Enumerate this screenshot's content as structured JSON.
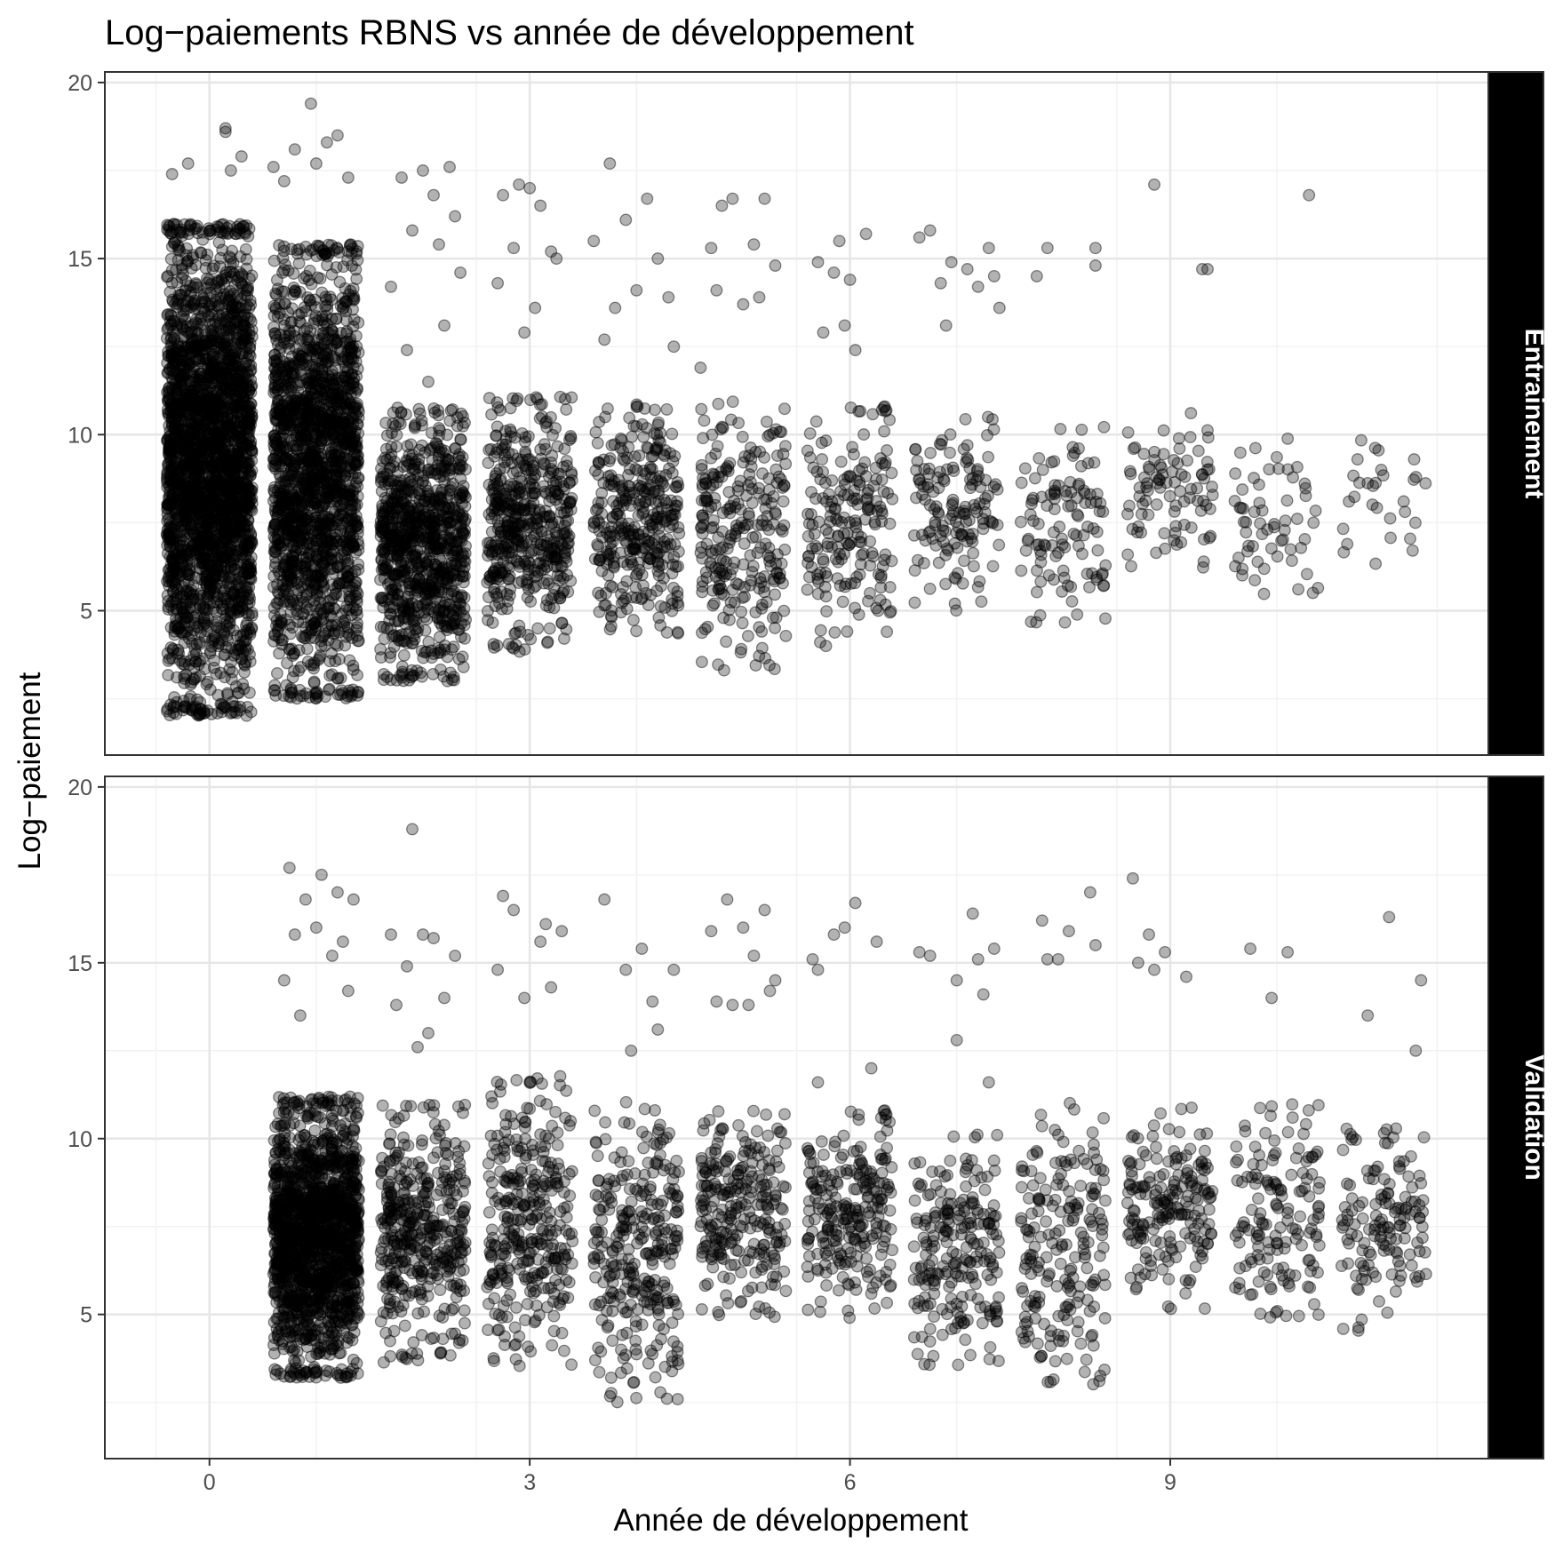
{
  "chart_data": {
    "type": "scatter",
    "title": "Log−paiements RBNS vs année de développement",
    "xlabel": "Année de développement",
    "ylabel": "Log−paiement",
    "xlim": [
      -0.98,
      11.98
    ],
    "ylim": [
      0.9,
      20.3
    ],
    "x_ticks": [
      0,
      3,
      6,
      9
    ],
    "x_tick_labels": [
      "0",
      "3",
      "6",
      "9"
    ],
    "y_ticks": [
      5,
      10,
      15,
      20
    ],
    "y_tick_labels": [
      "5",
      "10",
      "15",
      "20"
    ],
    "grid": true,
    "jitter_width": 0.4,
    "point_style": {
      "color": "#000000",
      "fill_opacity": 0.3
    },
    "panels": [
      {
        "name": "Entrainement",
        "groups": [
          {
            "x": 0,
            "n": 2600,
            "core": [
              2.0,
              16.0
            ],
            "outliers": [
              [
                0.15,
                18.6
              ],
              [
                0.15,
                18.7
              ],
              [
                -0.2,
                17.7
              ],
              [
                0.3,
                17.9
              ],
              [
                -0.35,
                17.4
              ],
              [
                0.2,
                17.5
              ]
            ]
          },
          {
            "x": 1,
            "n": 1800,
            "core": [
              2.5,
              15.4
            ],
            "outliers": [
              [
                0.95,
                19.4
              ],
              [
                1.2,
                18.5
              ],
              [
                0.8,
                18.1
              ],
              [
                1.1,
                18.3
              ],
              [
                0.6,
                17.6
              ],
              [
                1.0,
                17.7
              ],
              [
                1.3,
                17.3
              ],
              [
                0.7,
                17.2
              ]
            ]
          },
          {
            "x": 2,
            "n": 900,
            "core": [
              3.0,
              10.8
            ],
            "outliers": [
              [
                2.0,
                17.5
              ],
              [
                2.25,
                17.6
              ],
              [
                1.8,
                17.3
              ],
              [
                2.1,
                16.8
              ],
              [
                2.3,
                16.2
              ],
              [
                1.9,
                15.8
              ],
              [
                2.15,
                15.4
              ],
              [
                2.35,
                14.6
              ],
              [
                1.7,
                14.2
              ],
              [
                2.2,
                13.1
              ],
              [
                1.85,
                12.4
              ],
              [
                2.05,
                11.5
              ]
            ]
          },
          {
            "x": 3,
            "n": 500,
            "core": [
              3.8,
              11.1
            ],
            "outliers": [
              [
                2.9,
                17.1
              ],
              [
                3.0,
                17.0
              ],
              [
                2.75,
                16.8
              ],
              [
                3.1,
                16.5
              ],
              [
                2.85,
                15.3
              ],
              [
                3.2,
                15.2
              ],
              [
                2.7,
                14.3
              ],
              [
                3.05,
                13.6
              ],
              [
                3.25,
                15.0
              ],
              [
                2.95,
                12.9
              ]
            ]
          },
          {
            "x": 4,
            "n": 350,
            "core": [
              4.3,
              11.0
            ],
            "outliers": [
              [
                3.75,
                17.7
              ],
              [
                4.1,
                16.7
              ],
              [
                3.9,
                16.1
              ],
              [
                4.2,
                15.0
              ],
              [
                3.6,
                15.5
              ],
              [
                4.3,
                13.9
              ],
              [
                3.8,
                13.6
              ],
              [
                4.0,
                14.1
              ],
              [
                4.35,
                12.5
              ],
              [
                3.7,
                12.7
              ]
            ]
          },
          {
            "x": 5,
            "n": 260,
            "core": [
              3.3,
              11.0
            ],
            "outliers": [
              [
                4.9,
                16.7
              ],
              [
                5.2,
                16.7
              ],
              [
                4.8,
                16.5
              ],
              [
                5.1,
                15.4
              ],
              [
                4.7,
                15.3
              ],
              [
                5.3,
                14.8
              ],
              [
                4.75,
                14.1
              ],
              [
                5.15,
                13.9
              ],
              [
                5.0,
                13.7
              ],
              [
                4.6,
                11.9
              ]
            ]
          },
          {
            "x": 6,
            "n": 190,
            "core": [
              3.9,
              10.8
            ],
            "outliers": [
              [
                5.9,
                15.5
              ],
              [
                6.15,
                15.7
              ],
              [
                5.7,
                14.9
              ],
              [
                6.0,
                14.4
              ],
              [
                5.85,
                14.6
              ],
              [
                5.75,
                12.9
              ],
              [
                5.95,
                13.1
              ],
              [
                6.05,
                12.4
              ],
              [
                6.3,
                10.7
              ]
            ]
          },
          {
            "x": 7,
            "n": 140,
            "core": [
              5.0,
              10.7
            ],
            "outliers": [
              [
                6.75,
                15.8
              ],
              [
                6.65,
                15.6
              ],
              [
                7.3,
                15.3
              ],
              [
                6.95,
                14.9
              ],
              [
                7.1,
                14.7
              ],
              [
                7.35,
                14.5
              ],
              [
                7.2,
                14.2
              ],
              [
                6.85,
                14.3
              ],
              [
                7.4,
                13.6
              ],
              [
                6.9,
                13.1
              ]
            ]
          },
          {
            "x": 8,
            "n": 110,
            "core": [
              4.6,
              10.3
            ],
            "outliers": [
              [
                8.3,
                15.3
              ],
              [
                7.85,
                15.3
              ],
              [
                8.3,
                14.8
              ],
              [
                7.75,
                14.5
              ]
            ]
          },
          {
            "x": 9,
            "n": 90,
            "core": [
              6.0,
              10.7
            ],
            "outliers": [
              [
                8.85,
                17.1
              ],
              [
                9.3,
                14.7
              ],
              [
                9.35,
                14.7
              ]
            ]
          },
          {
            "x": 10,
            "n": 60,
            "core": [
              5.4,
              10.1
            ],
            "outliers": [
              [
                10.3,
                16.8
              ]
            ]
          },
          {
            "x": 11,
            "n": 30,
            "core": [
              6.0,
              10.1
            ],
            "outliers": []
          }
        ]
      },
      {
        "name": "Validation",
        "groups": [
          {
            "x": 1,
            "n": 1600,
            "core": [
              3.2,
              11.2
            ],
            "outliers": [
              [
                0.75,
                17.7
              ],
              [
                1.05,
                17.5
              ],
              [
                1.2,
                17.0
              ],
              [
                0.9,
                16.8
              ],
              [
                1.35,
                16.8
              ],
              [
                1.0,
                16.0
              ],
              [
                0.8,
                15.8
              ],
              [
                1.25,
                15.6
              ],
              [
                1.15,
                15.2
              ],
              [
                0.7,
                14.5
              ],
              [
                1.3,
                14.2
              ],
              [
                0.85,
                13.5
              ]
            ]
          },
          {
            "x": 2,
            "n": 420,
            "core": [
              3.6,
              11.0
            ],
            "outliers": [
              [
                1.9,
                18.8
              ],
              [
                2.0,
                15.8
              ],
              [
                1.7,
                15.8
              ],
              [
                2.1,
                15.7
              ],
              [
                2.3,
                15.2
              ],
              [
                1.85,
                14.9
              ],
              [
                2.2,
                14.0
              ],
              [
                1.75,
                13.8
              ],
              [
                2.05,
                13.0
              ],
              [
                1.95,
                12.6
              ]
            ]
          },
          {
            "x": 3,
            "n": 330,
            "core": [
              3.5,
              11.8
            ],
            "outliers": [
              [
                2.75,
                16.9
              ],
              [
                2.85,
                16.5
              ],
              [
                3.15,
                16.1
              ],
              [
                3.3,
                15.9
              ],
              [
                3.1,
                15.6
              ],
              [
                2.7,
                14.8
              ],
              [
                2.95,
                14.0
              ],
              [
                3.2,
                14.3
              ]
            ]
          },
          {
            "x": 4,
            "n": 300,
            "core": [
              2.5,
              11.1
            ],
            "outliers": [
              [
                3.7,
                16.8
              ],
              [
                4.05,
                15.4
              ],
              [
                3.9,
                14.8
              ],
              [
                4.35,
                14.8
              ],
              [
                4.15,
                13.9
              ],
              [
                4.2,
                13.1
              ],
              [
                3.95,
                12.5
              ]
            ]
          },
          {
            "x": 5,
            "n": 260,
            "core": [
              4.9,
              10.9
            ],
            "outliers": [
              [
                4.85,
                16.8
              ],
              [
                5.2,
                16.5
              ],
              [
                4.7,
                15.9
              ],
              [
                5.0,
                16.0
              ],
              [
                5.1,
                15.2
              ],
              [
                5.3,
                14.5
              ],
              [
                4.9,
                13.8
              ],
              [
                5.05,
                13.8
              ],
              [
                5.25,
                14.2
              ],
              [
                4.75,
                13.9
              ]
            ]
          },
          {
            "x": 6,
            "n": 240,
            "core": [
              4.9,
              10.8
            ],
            "outliers": [
              [
                6.05,
                16.7
              ],
              [
                5.95,
                16.0
              ],
              [
                5.65,
                15.1
              ],
              [
                5.7,
                14.8
              ],
              [
                5.85,
                15.8
              ],
              [
                6.25,
                15.6
              ],
              [
                6.2,
                12.0
              ],
              [
                5.7,
                11.6
              ]
            ]
          },
          {
            "x": 7,
            "n": 220,
            "core": [
              3.5,
              10.2
            ],
            "outliers": [
              [
                7.15,
                16.4
              ],
              [
                6.75,
                15.2
              ],
              [
                7.35,
                15.4
              ],
              [
                7.2,
                15.1
              ],
              [
                6.65,
                15.3
              ],
              [
                7.0,
                14.5
              ],
              [
                7.25,
                14.1
              ],
              [
                7.0,
                12.8
              ],
              [
                7.3,
                11.6
              ]
            ]
          },
          {
            "x": 8,
            "n": 200,
            "core": [
              3.0,
              11.2
            ],
            "outliers": [
              [
                8.25,
                17.0
              ],
              [
                7.8,
                16.2
              ],
              [
                8.05,
                15.9
              ],
              [
                8.3,
                15.5
              ],
              [
                7.85,
                15.1
              ],
              [
                7.95,
                15.1
              ]
            ]
          },
          {
            "x": 9,
            "n": 190,
            "core": [
              5.0,
              11.0
            ],
            "outliers": [
              [
                8.65,
                17.4
              ],
              [
                8.8,
                15.8
              ],
              [
                8.7,
                15.0
              ],
              [
                8.85,
                14.8
              ],
              [
                8.95,
                15.3
              ],
              [
                9.15,
                14.6
              ]
            ]
          },
          {
            "x": 10,
            "n": 150,
            "core": [
              4.9,
              11.0
            ],
            "outliers": [
              [
                9.75,
                15.4
              ],
              [
                10.1,
                15.3
              ],
              [
                9.95,
                14.0
              ]
            ]
          },
          {
            "x": 11,
            "n": 140,
            "core": [
              4.5,
              10.3
            ],
            "outliers": [
              [
                11.05,
                16.3
              ],
              [
                10.85,
                13.5
              ],
              [
                11.35,
                14.5
              ],
              [
                11.3,
                12.5
              ]
            ]
          }
        ]
      }
    ]
  }
}
